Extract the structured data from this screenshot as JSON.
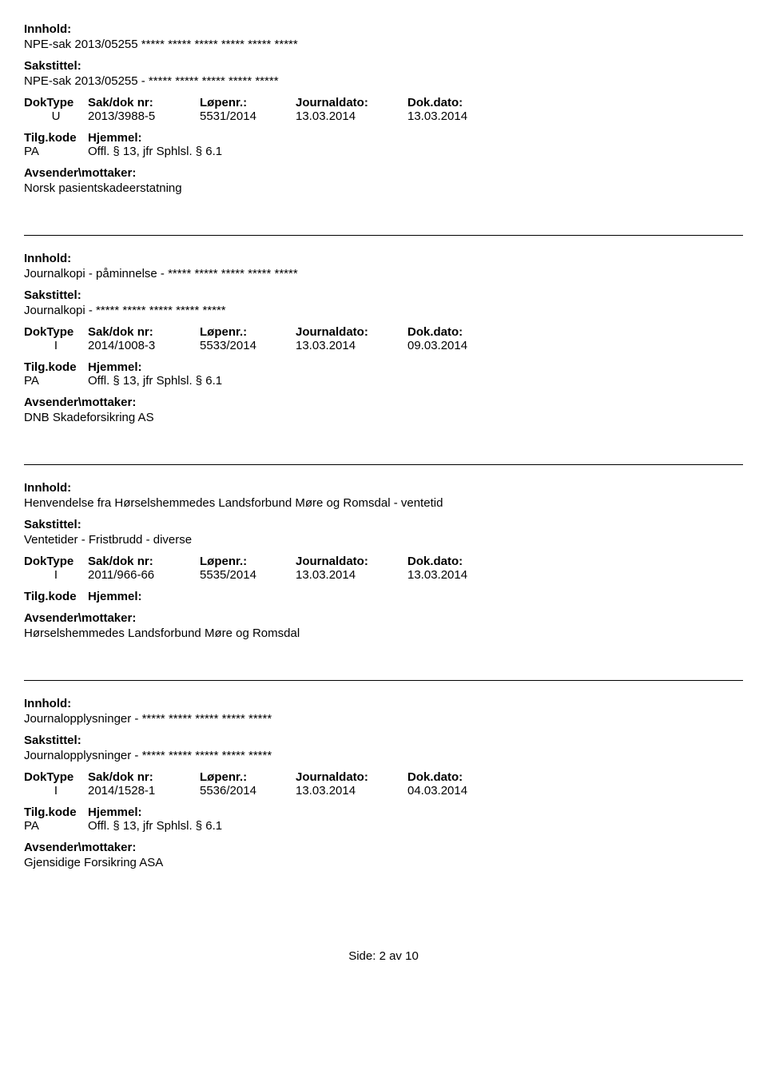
{
  "labels": {
    "innhold": "Innhold:",
    "sakstittel": "Sakstittel:",
    "doktype": "DokType",
    "sakdoknr": "Sak/dok nr:",
    "lopenr": "Løpenr.:",
    "journaldato": "Journaldato:",
    "dokdato": "Dok.dato:",
    "tilgkode": "Tilg.kode",
    "hjemmel": "Hjemmel:",
    "avsender": "Avsender\\mottaker:"
  },
  "records": [
    {
      "innhold": "NPE-sak 2013/05255 ***** ***** ***** ***** ***** *****",
      "sakstittel": "NPE-sak 2013/05255 - ***** ***** ***** ***** *****",
      "doktype": "U",
      "sakdoknr": "2013/3988-5",
      "lopenr": "5531/2014",
      "journaldato": "13.03.2014",
      "dokdato": "13.03.2014",
      "tilgkode": "PA",
      "hjemmel": "Offl. § 13, jfr Sphlsl. § 6.1",
      "avsender": "Norsk pasientskadeerstatning"
    },
    {
      "innhold": "Journalkopi - påminnelse -  ***** ***** ***** ***** *****",
      "sakstittel": "Journalkopi - ***** ***** ***** ***** *****",
      "doktype": "I",
      "sakdoknr": "2014/1008-3",
      "lopenr": "5533/2014",
      "journaldato": "13.03.2014",
      "dokdato": "09.03.2014",
      "tilgkode": "PA",
      "hjemmel": "Offl. § 13, jfr Sphlsl. § 6.1",
      "avsender": "DNB Skadeforsikring AS"
    },
    {
      "innhold": "Henvendelse fra Hørselshemmedes Landsforbund Møre og Romsdal - ventetid",
      "sakstittel": "Ventetider - Fristbrudd - diverse",
      "doktype": "I",
      "sakdoknr": "2011/966-66",
      "lopenr": "5535/2014",
      "journaldato": "13.03.2014",
      "dokdato": "13.03.2014",
      "tilgkode": "",
      "hjemmel": "",
      "avsender": "Hørselshemmedes Landsforbund Møre og Romsdal"
    },
    {
      "innhold": "Journalopplysninger - ***** ***** ***** ***** *****",
      "sakstittel": "Journalopplysninger - ***** ***** ***** ***** *****",
      "doktype": "I",
      "sakdoknr": "2014/1528-1",
      "lopenr": "5536/2014",
      "journaldato": "13.03.2014",
      "dokdato": "04.03.2014",
      "tilgkode": "PA",
      "hjemmel": "Offl. § 13, jfr Sphlsl. § 6.1",
      "avsender": "Gjensidige Forsikring ASA"
    }
  ],
  "footer": "Side: 2 av 10"
}
